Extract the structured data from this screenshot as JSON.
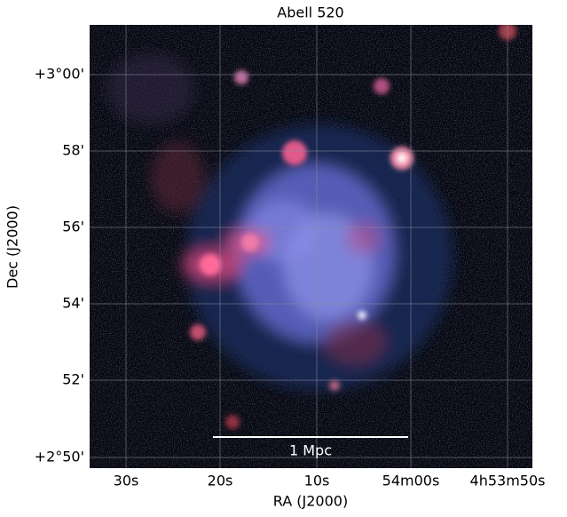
{
  "title": "Abell 520",
  "x_axis": {
    "label": "RA (J2000)",
    "ticks": [
      "30s",
      "20s",
      "10s",
      "54m00s",
      "4h53m50s"
    ]
  },
  "y_axis": {
    "label": "Dec (J2000)",
    "ticks": [
      "+3°00'",
      "58'",
      "56'",
      "54'",
      "52'",
      "+2°50'"
    ]
  },
  "scale_bar": {
    "label": "1 Mpc"
  }
}
